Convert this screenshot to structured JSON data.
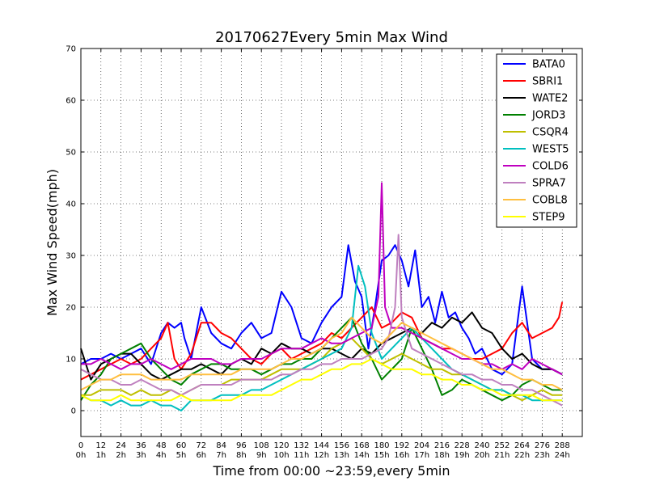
{
  "chart_data": {
    "type": "line",
    "title": "20170627Every 5min Max Wind",
    "xlabel": "Time from 00:00 ~23:59,every 5min",
    "ylabel": "Max Wind Speed(mph)",
    "xlim": [
      0,
      300
    ],
    "ylim": [
      -5,
      70
    ],
    "grid": true,
    "legend_position": "top-right",
    "y_ticks": [
      0,
      10,
      20,
      30,
      40,
      50,
      60,
      70
    ],
    "x_ticks": [
      {
        "value": 0,
        "line1": "0",
        "line2": "0h"
      },
      {
        "value": 12,
        "line1": "12",
        "line2": "1h"
      },
      {
        "value": 24,
        "line1": "24",
        "line2": "2h"
      },
      {
        "value": 36,
        "line1": "36",
        "line2": "3h"
      },
      {
        "value": 48,
        "line1": "48",
        "line2": "4h"
      },
      {
        "value": 60,
        "line1": "60",
        "line2": "5h"
      },
      {
        "value": 72,
        "line1": "72",
        "line2": "6h"
      },
      {
        "value": 84,
        "line1": "84",
        "line2": "7h"
      },
      {
        "value": 96,
        "line1": "96",
        "line2": "8h"
      },
      {
        "value": 108,
        "line1": "108",
        "line2": "9h"
      },
      {
        "value": 120,
        "line1": "120",
        "line2": "10h"
      },
      {
        "value": 132,
        "line1": "132",
        "line2": "11h"
      },
      {
        "value": 144,
        "line1": "144",
        "line2": "12h"
      },
      {
        "value": 156,
        "line1": "156",
        "line2": "13h"
      },
      {
        "value": 168,
        "line1": "168",
        "line2": "14h"
      },
      {
        "value": 180,
        "line1": "180",
        "line2": "15h"
      },
      {
        "value": 192,
        "line1": "192",
        "line2": "16h"
      },
      {
        "value": 204,
        "line1": "204",
        "line2": "17h"
      },
      {
        "value": 216,
        "line1": "216",
        "line2": "18h"
      },
      {
        "value": 228,
        "line1": "228",
        "line2": "19h"
      },
      {
        "value": 240,
        "line1": "240",
        "line2": "20h"
      },
      {
        "value": 252,
        "line1": "252",
        "line2": "21h"
      },
      {
        "value": 264,
        "line1": "264",
        "line2": "22h"
      },
      {
        "value": 276,
        "line1": "276",
        "line2": "23h"
      },
      {
        "value": 288,
        "line1": "288",
        "line2": "24h"
      }
    ],
    "series": [
      {
        "name": "BATA0",
        "color": "#0000ff",
        "x": [
          0,
          6,
          12,
          18,
          24,
          30,
          36,
          42,
          48,
          52,
          56,
          60,
          62,
          66,
          72,
          78,
          84,
          90,
          96,
          102,
          108,
          114,
          120,
          126,
          132,
          138,
          144,
          150,
          156,
          160,
          164,
          168,
          172,
          176,
          180,
          184,
          188,
          192,
          196,
          200,
          204,
          208,
          212,
          216,
          220,
          224,
          228,
          232,
          236,
          240,
          246,
          252,
          258,
          264,
          270,
          276,
          282,
          288
        ],
        "y": [
          9,
          10,
          10,
          11,
          10,
          11,
          12,
          9,
          15,
          17,
          16,
          17,
          14,
          10,
          20,
          15,
          13,
          12,
          15,
          17,
          14,
          15,
          23,
          20,
          14,
          13,
          17,
          20,
          22,
          32,
          25,
          22,
          12,
          20,
          29,
          30,
          32,
          29,
          24,
          31,
          20,
          22,
          17,
          23,
          18,
          19,
          16,
          14,
          11,
          12,
          8,
          7,
          9,
          24,
          10,
          8,
          8,
          7
        ]
      },
      {
        "name": "SBRI1",
        "color": "#ff0000",
        "x": [
          0,
          6,
          12,
          18,
          24,
          30,
          36,
          42,
          48,
          52,
          56,
          60,
          66,
          72,
          78,
          84,
          90,
          96,
          102,
          108,
          114,
          120,
          126,
          132,
          138,
          144,
          150,
          156,
          162,
          168,
          174,
          180,
          186,
          192,
          198,
          204,
          210,
          216,
          222,
          228,
          234,
          240,
          246,
          252,
          258,
          264,
          270,
          276,
          282,
          286,
          288
        ],
        "y": [
          6,
          7,
          8,
          9,
          10,
          9,
          10,
          12,
          14,
          17,
          10,
          8,
          11,
          17,
          17,
          15,
          14,
          12,
          10,
          9,
          11,
          12,
          10,
          11,
          12,
          13,
          15,
          14,
          16,
          18,
          20,
          16,
          17,
          19,
          18,
          14,
          13,
          12,
          12,
          11,
          10,
          10,
          11,
          12,
          15,
          17,
          14,
          15,
          16,
          18,
          21
        ]
      },
      {
        "name": "WATE2",
        "color": "#000000",
        "x": [
          0,
          6,
          12,
          18,
          24,
          30,
          36,
          42,
          48,
          54,
          60,
          66,
          72,
          78,
          84,
          90,
          96,
          102,
          108,
          114,
          120,
          126,
          132,
          138,
          144,
          150,
          156,
          162,
          168,
          174,
          180,
          186,
          192,
          198,
          204,
          210,
          216,
          222,
          228,
          234,
          240,
          246,
          252,
          258,
          264,
          270,
          276,
          282,
          288
        ],
        "y": [
          12,
          6,
          9,
          10,
          11,
          11,
          9,
          7,
          6,
          7,
          8,
          8,
          9,
          8,
          7,
          9,
          10,
          9,
          12,
          11,
          13,
          12,
          12,
          11,
          12,
          12,
          11,
          10,
          12,
          11,
          13,
          14,
          15,
          16,
          15,
          17,
          16,
          18,
          17,
          19,
          16,
          15,
          12,
          10,
          11,
          9,
          8,
          8,
          7
        ]
      },
      {
        "name": "JORD3",
        "color": "#008000",
        "x": [
          0,
          6,
          12,
          18,
          24,
          30,
          36,
          42,
          48,
          54,
          60,
          66,
          72,
          78,
          84,
          90,
          96,
          102,
          108,
          114,
          120,
          126,
          132,
          138,
          144,
          150,
          156,
          162,
          168,
          174,
          180,
          186,
          192,
          198,
          204,
          210,
          216,
          222,
          228,
          234,
          240,
          246,
          252,
          258,
          264,
          270,
          276,
          282,
          288
        ],
        "y": [
          2,
          5,
          7,
          10,
          11,
          12,
          13,
          10,
          8,
          6,
          5,
          7,
          8,
          9,
          9,
          8,
          8,
          8,
          7,
          8,
          9,
          9,
          10,
          10,
          12,
          14,
          16,
          18,
          13,
          10,
          6,
          8,
          10,
          16,
          12,
          8,
          3,
          4,
          6,
          5,
          4,
          3,
          2,
          3,
          5,
          6,
          5,
          4,
          4
        ]
      },
      {
        "name": "CSQR4",
        "color": "#bfbf00",
        "x": [
          0,
          6,
          12,
          18,
          24,
          30,
          36,
          42,
          48,
          54,
          60,
          66,
          72,
          78,
          84,
          90,
          96,
          102,
          108,
          114,
          120,
          126,
          132,
          138,
          144,
          150,
          156,
          162,
          168,
          174,
          180,
          186,
          192,
          198,
          204,
          210,
          216,
          222,
          228,
          234,
          240,
          246,
          252,
          258,
          264,
          270,
          276,
          282,
          288
        ],
        "y": [
          3,
          3,
          4,
          4,
          4,
          3,
          4,
          3,
          3,
          4,
          3,
          4,
          5,
          5,
          5,
          6,
          6,
          6,
          6,
          7,
          8,
          8,
          8,
          9,
          10,
          12,
          13,
          14,
          12,
          10,
          9,
          10,
          11,
          10,
          9,
          8,
          8,
          7,
          7,
          6,
          5,
          4,
          4,
          3,
          2,
          3,
          4,
          3,
          3
        ]
      },
      {
        "name": "WEST5",
        "color": "#00bfbf",
        "x": [
          0,
          6,
          12,
          18,
          24,
          30,
          36,
          42,
          48,
          54,
          60,
          66,
          72,
          78,
          84,
          90,
          96,
          102,
          108,
          114,
          120,
          126,
          132,
          138,
          144,
          150,
          156,
          162,
          166,
          170,
          174,
          180,
          186,
          192,
          198,
          204,
          210,
          216,
          222,
          228,
          234,
          240,
          246,
          252,
          258,
          264,
          270,
          276,
          282,
          288
        ],
        "y": [
          3,
          2,
          2,
          1,
          2,
          1,
          1,
          2,
          1,
          1,
          0,
          2,
          2,
          2,
          3,
          3,
          3,
          4,
          4,
          5,
          6,
          7,
          8,
          9,
          10,
          11,
          12,
          16,
          28,
          24,
          15,
          10,
          12,
          14,
          16,
          14,
          12,
          10,
          8,
          7,
          6,
          5,
          4,
          4,
          3,
          3,
          2,
          2,
          2,
          2
        ]
      },
      {
        "name": "COLD6",
        "color": "#bf00bf",
        "x": [
          0,
          6,
          12,
          18,
          24,
          30,
          36,
          42,
          48,
          54,
          60,
          66,
          72,
          78,
          84,
          90,
          96,
          102,
          108,
          114,
          120,
          126,
          132,
          138,
          144,
          150,
          156,
          162,
          168,
          174,
          178,
          180,
          182,
          186,
          192,
          198,
          204,
          210,
          216,
          222,
          228,
          234,
          240,
          246,
          252,
          258,
          264,
          270,
          276,
          282,
          288
        ],
        "y": [
          9,
          9,
          10,
          9,
          8,
          9,
          9,
          10,
          9,
          8,
          9,
          10,
          10,
          10,
          9,
          9,
          10,
          10,
          10,
          11,
          12,
          12,
          12,
          13,
          14,
          13,
          13,
          14,
          15,
          16,
          22,
          44,
          20,
          16,
          16,
          15,
          14,
          13,
          12,
          11,
          10,
          10,
          9,
          9,
          8,
          9,
          8,
          10,
          9,
          8,
          7
        ]
      },
      {
        "name": "SPRA7",
        "color": "#bf80bf",
        "x": [
          0,
          6,
          12,
          18,
          24,
          30,
          36,
          42,
          48,
          54,
          60,
          66,
          72,
          78,
          84,
          90,
          96,
          102,
          108,
          114,
          120,
          126,
          132,
          138,
          144,
          150,
          156,
          162,
          168,
          174,
          180,
          184,
          188,
          190,
          192,
          198,
          204,
          210,
          216,
          222,
          228,
          234,
          240,
          246,
          252,
          258,
          264,
          270,
          276,
          282,
          288
        ],
        "y": [
          8,
          7,
          6,
          6,
          5,
          5,
          6,
          5,
          4,
          4,
          3,
          4,
          5,
          5,
          5,
          5,
          6,
          6,
          6,
          6,
          7,
          7,
          8,
          8,
          9,
          9,
          10,
          10,
          10,
          11,
          12,
          14,
          20,
          34,
          18,
          12,
          11,
          10,
          9,
          8,
          7,
          7,
          6,
          6,
          5,
          5,
          4,
          4,
          3,
          2,
          1
        ]
      },
      {
        "name": "COBL8",
        "color": "#ffbf40",
        "x": [
          0,
          6,
          12,
          18,
          24,
          30,
          36,
          42,
          48,
          54,
          60,
          66,
          72,
          78,
          84,
          90,
          96,
          102,
          108,
          114,
          120,
          126,
          132,
          138,
          144,
          150,
          156,
          162,
          168,
          174,
          180,
          186,
          192,
          198,
          204,
          210,
          216,
          222,
          228,
          234,
          240,
          246,
          252,
          258,
          264,
          270,
          276,
          282,
          288
        ],
        "y": [
          4,
          5,
          6,
          6,
          7,
          7,
          7,
          6,
          6,
          6,
          6,
          7,
          7,
          7,
          7,
          7,
          8,
          8,
          8,
          8,
          9,
          10,
          10,
          11,
          12,
          14,
          15,
          18,
          16,
          14,
          13,
          15,
          17,
          16,
          15,
          14,
          13,
          12,
          11,
          10,
          9,
          8,
          8,
          7,
          6,
          6,
          5,
          5,
          4
        ]
      },
      {
        "name": "STEP9",
        "color": "#ffff00",
        "x": [
          0,
          6,
          12,
          18,
          24,
          30,
          36,
          42,
          48,
          54,
          60,
          66,
          72,
          78,
          84,
          90,
          96,
          102,
          108,
          114,
          120,
          126,
          132,
          138,
          144,
          150,
          156,
          162,
          168,
          174,
          180,
          186,
          192,
          198,
          204,
          210,
          216,
          222,
          228,
          234,
          240,
          246,
          252,
          258,
          264,
          270,
          276,
          282,
          288
        ],
        "y": [
          3,
          2,
          2,
          2,
          3,
          2,
          2,
          2,
          2,
          2,
          3,
          2,
          2,
          2,
          2,
          2,
          3,
          3,
          3,
          3,
          4,
          5,
          6,
          6,
          7,
          8,
          8,
          9,
          9,
          10,
          9,
          8,
          8,
          8,
          7,
          7,
          6,
          6,
          5,
          5,
          4,
          4,
          3,
          3,
          3,
          3,
          2,
          2,
          2
        ]
      }
    ]
  }
}
